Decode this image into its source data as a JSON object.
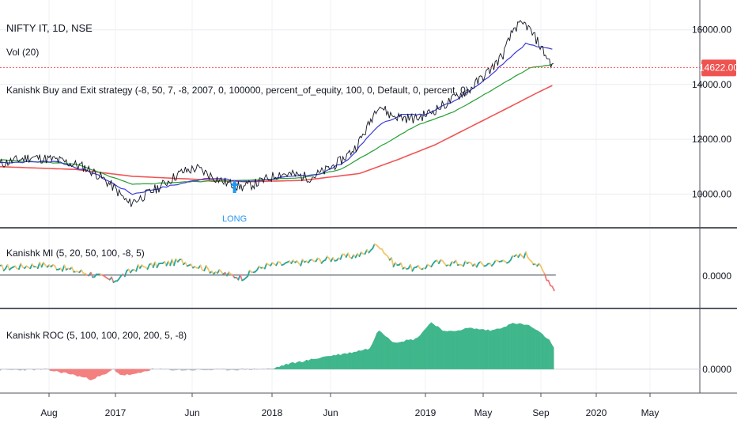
{
  "header": {
    "symbol": "NIFTY IT, 1D, NSE",
    "volume": "Vol (20)",
    "strategy": "Kanishk Buy and Exit strategy (-8, 50, 7, -8, 2007, 0, 100000, percent_of_equity, 100, 0, Default, 0, percent, 0)"
  },
  "colors": {
    "price": "#131722",
    "ema_fast": "#3b3bd6",
    "ema_mid": "#27a035",
    "ema_slow": "#f05555",
    "mi_up": "#26a69a",
    "mi_mid": "#f5c56a",
    "mi_down": "#f07878",
    "roc_pos": "#3fb68b",
    "roc_neg": "#f47f7f",
    "roc_flat": "#b8bcc4",
    "price_tag": "#ef5350",
    "long": "#2196f3"
  },
  "price_axis": {
    "ticks": [
      "16000.00",
      "14000.00",
      "12000.00",
      "10000.00"
    ],
    "current": "14622.00"
  },
  "mi_axis": {
    "ticks": [
      "0.0000"
    ]
  },
  "roc_axis": {
    "ticks": [
      "0.0000"
    ]
  },
  "time_axis": [
    "Aug",
    "2017",
    "Jun",
    "2018",
    "Jun",
    "2019",
    "May",
    "Sep",
    "2020",
    "May"
  ],
  "panes": {
    "mi_title": "Kanishk MI (5, 20, 50, 100, -8, 5)",
    "roc_title": "Kanishk ROC (5, 100, 100, 200, 200, 5, -8)"
  },
  "signal": {
    "label": "LONG"
  },
  "chart_data": {
    "type": "line",
    "price_anchors": [
      [
        0,
        11100
      ],
      [
        8,
        11350
      ],
      [
        15,
        11250
      ],
      [
        22,
        11000
      ],
      [
        26,
        10700
      ],
      [
        30,
        10250
      ],
      [
        34,
        9650
      ],
      [
        37,
        9850
      ],
      [
        42,
        10250
      ],
      [
        48,
        10800
      ],
      [
        52,
        10950
      ],
      [
        56,
        10650
      ],
      [
        60,
        10400
      ],
      [
        64,
        10250
      ],
      [
        68,
        10400
      ],
      [
        74,
        10750
      ],
      [
        78,
        10700
      ],
      [
        82,
        10600
      ],
      [
        86,
        10850
      ],
      [
        90,
        11200
      ],
      [
        94,
        11700
      ],
      [
        97,
        12400
      ],
      [
        100,
        13300
      ],
      [
        103,
        12900
      ],
      [
        106,
        12800
      ],
      [
        110,
        12750
      ],
      [
        114,
        13000
      ],
      [
        118,
        13300
      ],
      [
        121,
        13600
      ],
      [
        124,
        13800
      ],
      [
        127,
        14200
      ],
      [
        130,
        14600
      ],
      [
        133,
        15100
      ],
      [
        136,
        16100
      ],
      [
        139,
        16200
      ],
      [
        142,
        15600
      ],
      [
        145,
        14900
      ],
      [
        146.5,
        14622
      ]
    ],
    "ema_fast_anchors": [
      [
        0,
        11150
      ],
      [
        15,
        11200
      ],
      [
        25,
        10750
      ],
      [
        35,
        10000
      ],
      [
        45,
        10300
      ],
      [
        55,
        10600
      ],
      [
        65,
        10450
      ],
      [
        75,
        10600
      ],
      [
        85,
        10750
      ],
      [
        92,
        11250
      ],
      [
        100,
        12500
      ],
      [
        106,
        12900
      ],
      [
        112,
        12900
      ],
      [
        120,
        13400
      ],
      [
        128,
        14150
      ],
      [
        134,
        14900
      ],
      [
        139,
        15500
      ],
      [
        143,
        15350
      ],
      [
        146.5,
        15300
      ]
    ],
    "ema_mid_anchors": [
      [
        0,
        11250
      ],
      [
        20,
        11100
      ],
      [
        35,
        10350
      ],
      [
        50,
        10450
      ],
      [
        65,
        10500
      ],
      [
        80,
        10600
      ],
      [
        90,
        10900
      ],
      [
        100,
        11700
      ],
      [
        110,
        12500
      ],
      [
        120,
        13000
      ],
      [
        130,
        13800
      ],
      [
        140,
        14600
      ],
      [
        146.5,
        14750
      ]
    ],
    "ema_slow_anchors": [
      [
        0,
        11000
      ],
      [
        20,
        10900
      ],
      [
        35,
        10650
      ],
      [
        50,
        10550
      ],
      [
        65,
        10450
      ],
      [
        80,
        10500
      ],
      [
        95,
        10750
      ],
      [
        105,
        11250
      ],
      [
        115,
        11800
      ],
      [
        125,
        12500
      ],
      [
        135,
        13200
      ],
      [
        142,
        13700
      ],
      [
        146.5,
        14000
      ]
    ],
    "mi_anchors": [
      [
        0,
        0.3
      ],
      [
        12,
        0.45
      ],
      [
        24,
        0.05
      ],
      [
        30,
        -0.25
      ],
      [
        36,
        0.3
      ],
      [
        48,
        0.6
      ],
      [
        58,
        0.1
      ],
      [
        64,
        -0.1
      ],
      [
        70,
        0.4
      ],
      [
        80,
        0.55
      ],
      [
        90,
        0.75
      ],
      [
        96,
        0.9
      ],
      [
        100,
        1.35
      ],
      [
        104,
        0.5
      ],
      [
        110,
        0.25
      ],
      [
        116,
        0.55
      ],
      [
        122,
        0.5
      ],
      [
        128,
        0.45
      ],
      [
        134,
        0.65
      ],
      [
        139,
        0.9
      ],
      [
        143,
        0.3
      ],
      [
        146.5,
        -0.6
      ]
    ],
    "roc_anchors": [
      [
        0,
        -0.05
      ],
      [
        12,
        -0.02
      ],
      [
        18,
        -0.25
      ],
      [
        24,
        -0.6
      ],
      [
        28,
        -0.3
      ],
      [
        30,
        0
      ],
      [
        32,
        -0.35
      ],
      [
        36,
        -0.3
      ],
      [
        40,
        0
      ],
      [
        48,
        -0.05
      ],
      [
        60,
        -0.03
      ],
      [
        72,
        0.02
      ],
      [
        76,
        0.3
      ],
      [
        82,
        0.55
      ],
      [
        86,
        0.75
      ],
      [
        92,
        0.95
      ],
      [
        98,
        1.25
      ],
      [
        100,
        2.4
      ],
      [
        104,
        1.6
      ],
      [
        110,
        1.8
      ],
      [
        114,
        2.8
      ],
      [
        118,
        2.2
      ],
      [
        124,
        2.45
      ],
      [
        130,
        2.3
      ],
      [
        136,
        2.75
      ],
      [
        140,
        2.6
      ],
      [
        145,
        1.8
      ],
      [
        146.5,
        1.2
      ]
    ],
    "x_range": [
      0,
      185
    ],
    "price_range": [
      9000,
      16800
    ],
    "mi_range": [
      -1.2,
      1.8
    ],
    "roc_range": [
      -1.1,
      3.3
    ],
    "long_signal_x": 62
  }
}
